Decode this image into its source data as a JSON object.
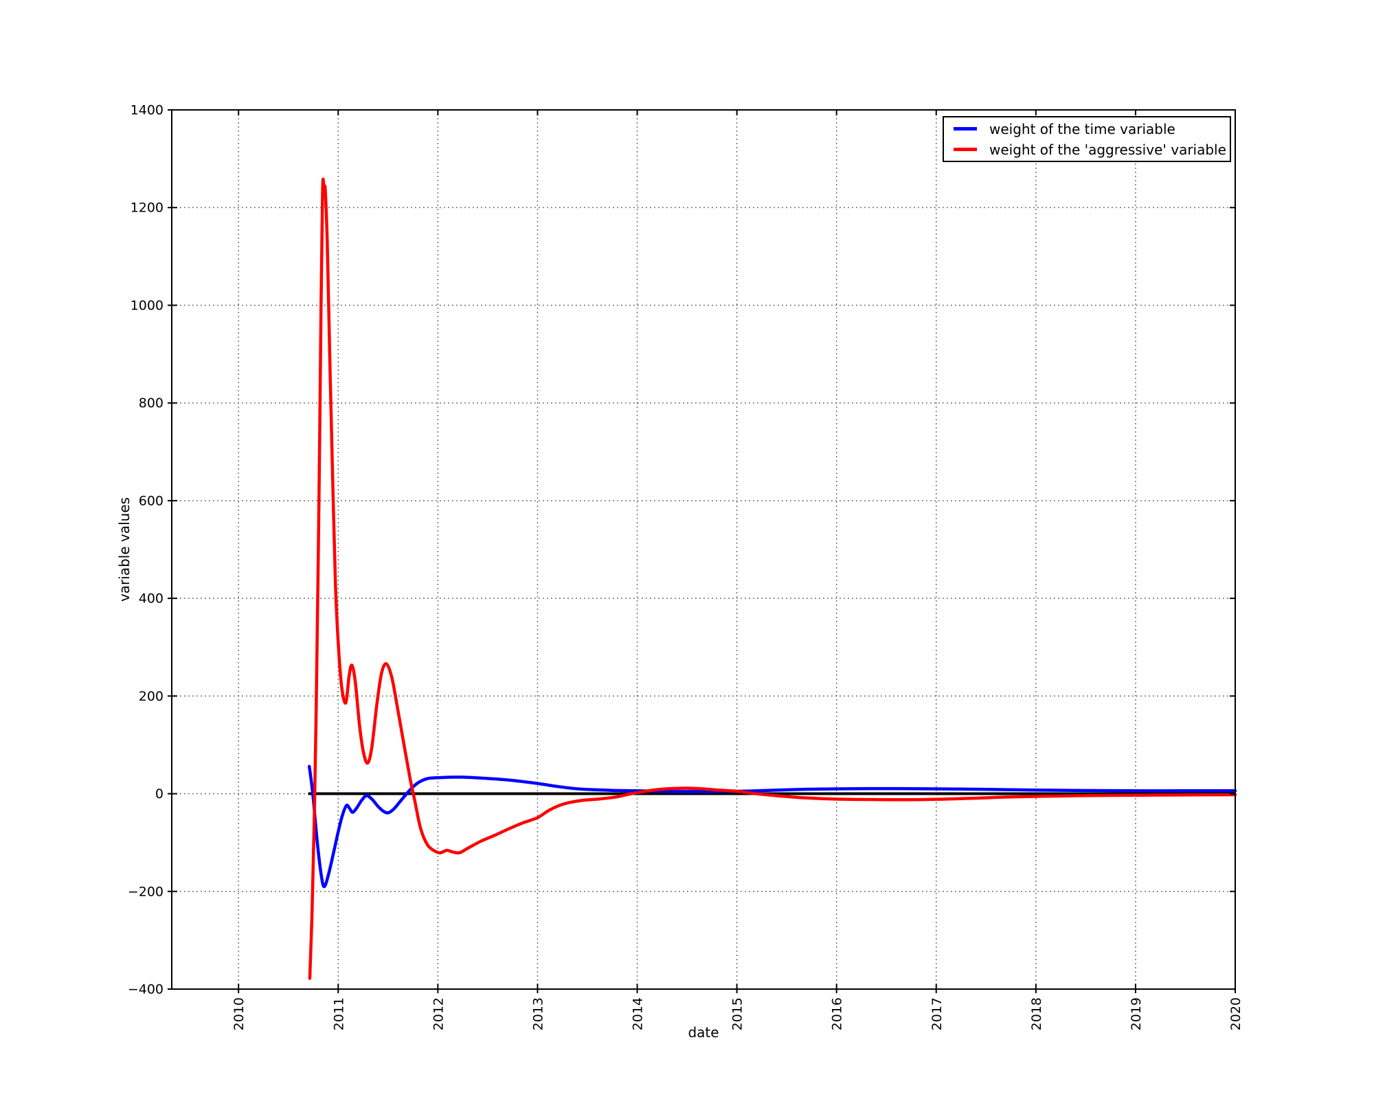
{
  "figure": {
    "background": "#ffffff"
  },
  "chart_data": {
    "type": "line",
    "title": "",
    "xlabel": "date",
    "ylabel": "variable values",
    "xlim": [
      2009.33,
      2020
    ],
    "ylim": [
      -400,
      1400
    ],
    "x_ticks": [
      2010,
      2011,
      2012,
      2013,
      2014,
      2015,
      2016,
      2017,
      2018,
      2019,
      2020
    ],
    "y_ticks": [
      -400,
      -200,
      0,
      200,
      400,
      600,
      800,
      1000,
      1200,
      1400
    ],
    "grid": {
      "visible": true,
      "style": "dotted",
      "color": "#555555"
    },
    "frame_color": "#000000",
    "zero_line": {
      "y": 0,
      "x_start": 2010.7,
      "x_end": 2020,
      "color": "#000000",
      "width": 4
    },
    "legend_position": "upper right",
    "series": [
      {
        "name": "weight of the time variable",
        "color": "#0000ff",
        "points": [
          [
            2010.71,
            56
          ],
          [
            2010.745,
            0
          ],
          [
            2010.793,
            -105
          ],
          [
            2010.834,
            -172
          ],
          [
            2010.862,
            -190
          ],
          [
            2010.903,
            -165
          ],
          [
            2010.952,
            -122
          ],
          [
            2011.0,
            -78
          ],
          [
            2011.041,
            -45
          ],
          [
            2011.083,
            -24
          ],
          [
            2011.117,
            -31
          ],
          [
            2011.145,
            -38
          ],
          [
            2011.186,
            -29
          ],
          [
            2011.234,
            -14
          ],
          [
            2011.283,
            -4
          ],
          [
            2011.338,
            -11
          ],
          [
            2011.4,
            -26
          ],
          [
            2011.455,
            -36
          ],
          [
            2011.503,
            -39
          ],
          [
            2011.559,
            -31
          ],
          [
            2011.621,
            -16
          ],
          [
            2011.683,
            -1
          ],
          [
            2011.745,
            13
          ],
          [
            2011.814,
            24
          ],
          [
            2011.897,
            31
          ],
          [
            2012.021,
            33
          ],
          [
            2012.228,
            34
          ],
          [
            2012.434,
            32
          ],
          [
            2012.71,
            28
          ],
          [
            2013.0,
            21
          ],
          [
            2013.193,
            15
          ],
          [
            2013.4,
            10
          ],
          [
            2013.607,
            8
          ],
          [
            2013.814,
            6.5
          ],
          [
            2014.0,
            6
          ],
          [
            2014.228,
            5
          ],
          [
            2014.503,
            4.5
          ],
          [
            2015.0,
            5
          ],
          [
            2015.331,
            7
          ],
          [
            2015.676,
            9
          ],
          [
            2016.0,
            10
          ],
          [
            2016.503,
            10.5
          ],
          [
            2017.0,
            10
          ],
          [
            2017.469,
            9
          ],
          [
            2018.0,
            7.5
          ],
          [
            2018.503,
            6.5
          ],
          [
            2019.0,
            6
          ],
          [
            2019.469,
            6
          ],
          [
            2020.0,
            6
          ]
        ]
      },
      {
        "name": "weight of the 'aggressive' variable",
        "color": "#ff0000",
        "points": [
          [
            2010.715,
            -378
          ],
          [
            2010.738,
            -240
          ],
          [
            2010.759,
            -60
          ],
          [
            2010.779,
            170
          ],
          [
            2010.807,
            600
          ],
          [
            2010.828,
            1000
          ],
          [
            2010.841,
            1200
          ],
          [
            2010.848,
            1258
          ],
          [
            2010.862,
            1225
          ],
          [
            2010.869,
            1240
          ],
          [
            2010.89,
            1130
          ],
          [
            2010.917,
            880
          ],
          [
            2010.945,
            640
          ],
          [
            2010.972,
            430
          ],
          [
            2011.0,
            310
          ],
          [
            2011.034,
            220
          ],
          [
            2011.076,
            186
          ],
          [
            2011.11,
            242
          ],
          [
            2011.138,
            263
          ],
          [
            2011.172,
            228
          ],
          [
            2011.214,
            140
          ],
          [
            2011.255,
            83
          ],
          [
            2011.297,
            63
          ],
          [
            2011.338,
            96
          ],
          [
            2011.386,
            180
          ],
          [
            2011.434,
            246
          ],
          [
            2011.483,
            266
          ],
          [
            2011.538,
            238
          ],
          [
            2011.593,
            178
          ],
          [
            2011.662,
            98
          ],
          [
            2011.724,
            28
          ],
          [
            2011.766,
            -12
          ],
          [
            2011.828,
            -72
          ],
          [
            2011.897,
            -105
          ],
          [
            2011.966,
            -117
          ],
          [
            2012.021,
            -121
          ],
          [
            2012.09,
            -116
          ],
          [
            2012.145,
            -119
          ],
          [
            2012.214,
            -121
          ],
          [
            2012.297,
            -112
          ],
          [
            2012.434,
            -97
          ],
          [
            2012.572,
            -85
          ],
          [
            2012.71,
            -72
          ],
          [
            2012.848,
            -60
          ],
          [
            2013.0,
            -49
          ],
          [
            2013.124,
            -33
          ],
          [
            2013.262,
            -21
          ],
          [
            2013.434,
            -14
          ],
          [
            2013.607,
            -11
          ],
          [
            2013.779,
            -7
          ],
          [
            2013.917,
            -1
          ],
          [
            2014.055,
            4
          ],
          [
            2014.228,
            9
          ],
          [
            2014.4,
            11
          ],
          [
            2014.572,
            11
          ],
          [
            2014.779,
            8
          ],
          [
            2015.0,
            5
          ],
          [
            2015.193,
            0
          ],
          [
            2015.4,
            -4
          ],
          [
            2015.641,
            -8
          ],
          [
            2016.0,
            -11
          ],
          [
            2016.434,
            -12
          ],
          [
            2016.848,
            -12
          ],
          [
            2017.262,
            -10
          ],
          [
            2017.676,
            -7
          ],
          [
            2018.0,
            -5.5
          ],
          [
            2018.434,
            -4
          ],
          [
            2019.0,
            -3
          ],
          [
            2019.469,
            -2.5
          ],
          [
            2020.0,
            -2
          ]
        ]
      }
    ]
  }
}
